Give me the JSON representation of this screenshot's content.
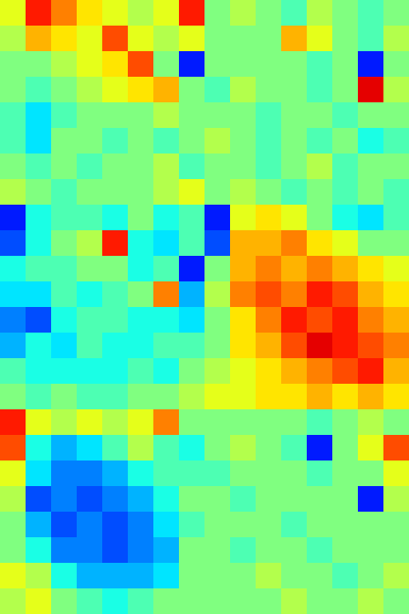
{
  "chart_data": {
    "type": "heatmap",
    "tick_labels": false,
    "grid": false,
    "xlim": [
      0,
      16
    ],
    "ylim": [
      0,
      24
    ],
    "color_range": [
      0,
      1
    ],
    "cells": [
      [
        0.6,
        0.85,
        0.75,
        0.65,
        0.6,
        0.55,
        0.6,
        0.85,
        0.5,
        0.55,
        0.5,
        0.45,
        0.55,
        0.5,
        0.45,
        0.5
      ],
      [
        0.55,
        0.7,
        0.65,
        0.6,
        0.8,
        0.6,
        0.55,
        0.6,
        0.5,
        0.5,
        0.5,
        0.7,
        0.6,
        0.5,
        0.45,
        0.55
      ],
      [
        0.5,
        0.5,
        0.55,
        0.6,
        0.65,
        0.8,
        0.5,
        0.15,
        0.5,
        0.5,
        0.5,
        0.5,
        0.45,
        0.5,
        0.15,
        0.5
      ],
      [
        0.5,
        0.45,
        0.5,
        0.55,
        0.6,
        0.65,
        0.7,
        0.5,
        0.45,
        0.55,
        0.5,
        0.5,
        0.45,
        0.5,
        0.9,
        0.55
      ],
      [
        0.45,
        0.35,
        0.45,
        0.5,
        0.5,
        0.5,
        0.55,
        0.5,
        0.5,
        0.5,
        0.45,
        0.5,
        0.5,
        0.45,
        0.5,
        0.5
      ],
      [
        0.45,
        0.35,
        0.5,
        0.5,
        0.45,
        0.5,
        0.45,
        0.5,
        0.55,
        0.5,
        0.45,
        0.5,
        0.45,
        0.5,
        0.4,
        0.45
      ],
      [
        0.5,
        0.45,
        0.5,
        0.45,
        0.5,
        0.5,
        0.55,
        0.45,
        0.5,
        0.5,
        0.45,
        0.5,
        0.55,
        0.45,
        0.5,
        0.5
      ],
      [
        0.55,
        0.5,
        0.45,
        0.5,
        0.5,
        0.5,
        0.55,
        0.6,
        0.5,
        0.55,
        0.5,
        0.45,
        0.5,
        0.45,
        0.5,
        0.45
      ],
      [
        0.15,
        0.4,
        0.45,
        0.45,
        0.4,
        0.5,
        0.4,
        0.45,
        0.15,
        0.6,
        0.65,
        0.6,
        0.5,
        0.4,
        0.35,
        0.45
      ],
      [
        0.2,
        0.4,
        0.5,
        0.55,
        0.85,
        0.4,
        0.35,
        0.45,
        0.2,
        0.7,
        0.7,
        0.75,
        0.65,
        0.6,
        0.5,
        0.5
      ],
      [
        0.4,
        0.45,
        0.45,
        0.5,
        0.5,
        0.4,
        0.45,
        0.15,
        0.5,
        0.7,
        0.75,
        0.7,
        0.75,
        0.7,
        0.65,
        0.6
      ],
      [
        0.35,
        0.35,
        0.45,
        0.4,
        0.45,
        0.5,
        0.75,
        0.3,
        0.55,
        0.75,
        0.8,
        0.75,
        0.85,
        0.8,
        0.7,
        0.65
      ],
      [
        0.25,
        0.2,
        0.4,
        0.45,
        0.45,
        0.4,
        0.4,
        0.35,
        0.5,
        0.65,
        0.75,
        0.85,
        0.8,
        0.85,
        0.75,
        0.7
      ],
      [
        0.3,
        0.4,
        0.35,
        0.45,
        0.4,
        0.4,
        0.45,
        0.45,
        0.5,
        0.65,
        0.7,
        0.8,
        0.9,
        0.85,
        0.8,
        0.75
      ],
      [
        0.45,
        0.4,
        0.4,
        0.4,
        0.4,
        0.45,
        0.4,
        0.5,
        0.55,
        0.6,
        0.65,
        0.7,
        0.75,
        0.8,
        0.85,
        0.7
      ],
      [
        0.5,
        0.45,
        0.5,
        0.45,
        0.45,
        0.5,
        0.5,
        0.55,
        0.6,
        0.6,
        0.65,
        0.65,
        0.7,
        0.65,
        0.7,
        0.65
      ],
      [
        0.85,
        0.6,
        0.55,
        0.6,
        0.55,
        0.6,
        0.75,
        0.5,
        0.5,
        0.5,
        0.5,
        0.5,
        0.45,
        0.5,
        0.55,
        0.5
      ],
      [
        0.8,
        0.4,
        0.3,
        0.35,
        0.45,
        0.55,
        0.45,
        0.4,
        0.5,
        0.55,
        0.5,
        0.45,
        0.15,
        0.5,
        0.6,
        0.8
      ],
      [
        0.6,
        0.35,
        0.25,
        0.25,
        0.3,
        0.4,
        0.45,
        0.45,
        0.45,
        0.5,
        0.5,
        0.5,
        0.45,
        0.5,
        0.5,
        0.6
      ],
      [
        0.55,
        0.2,
        0.25,
        0.2,
        0.25,
        0.3,
        0.4,
        0.5,
        0.5,
        0.45,
        0.5,
        0.5,
        0.5,
        0.5,
        0.15,
        0.55
      ],
      [
        0.5,
        0.3,
        0.2,
        0.25,
        0.2,
        0.25,
        0.35,
        0.45,
        0.5,
        0.5,
        0.5,
        0.45,
        0.5,
        0.5,
        0.5,
        0.5
      ],
      [
        0.5,
        0.4,
        0.25,
        0.25,
        0.2,
        0.25,
        0.3,
        0.5,
        0.5,
        0.45,
        0.5,
        0.5,
        0.45,
        0.5,
        0.5,
        0.5
      ],
      [
        0.6,
        0.55,
        0.4,
        0.3,
        0.3,
        0.3,
        0.35,
        0.5,
        0.5,
        0.5,
        0.55,
        0.5,
        0.5,
        0.45,
        0.5,
        0.55
      ],
      [
        0.55,
        0.6,
        0.5,
        0.45,
        0.4,
        0.45,
        0.5,
        0.5,
        0.5,
        0.5,
        0.5,
        0.55,
        0.5,
        0.5,
        0.55,
        0.5
      ]
    ]
  }
}
